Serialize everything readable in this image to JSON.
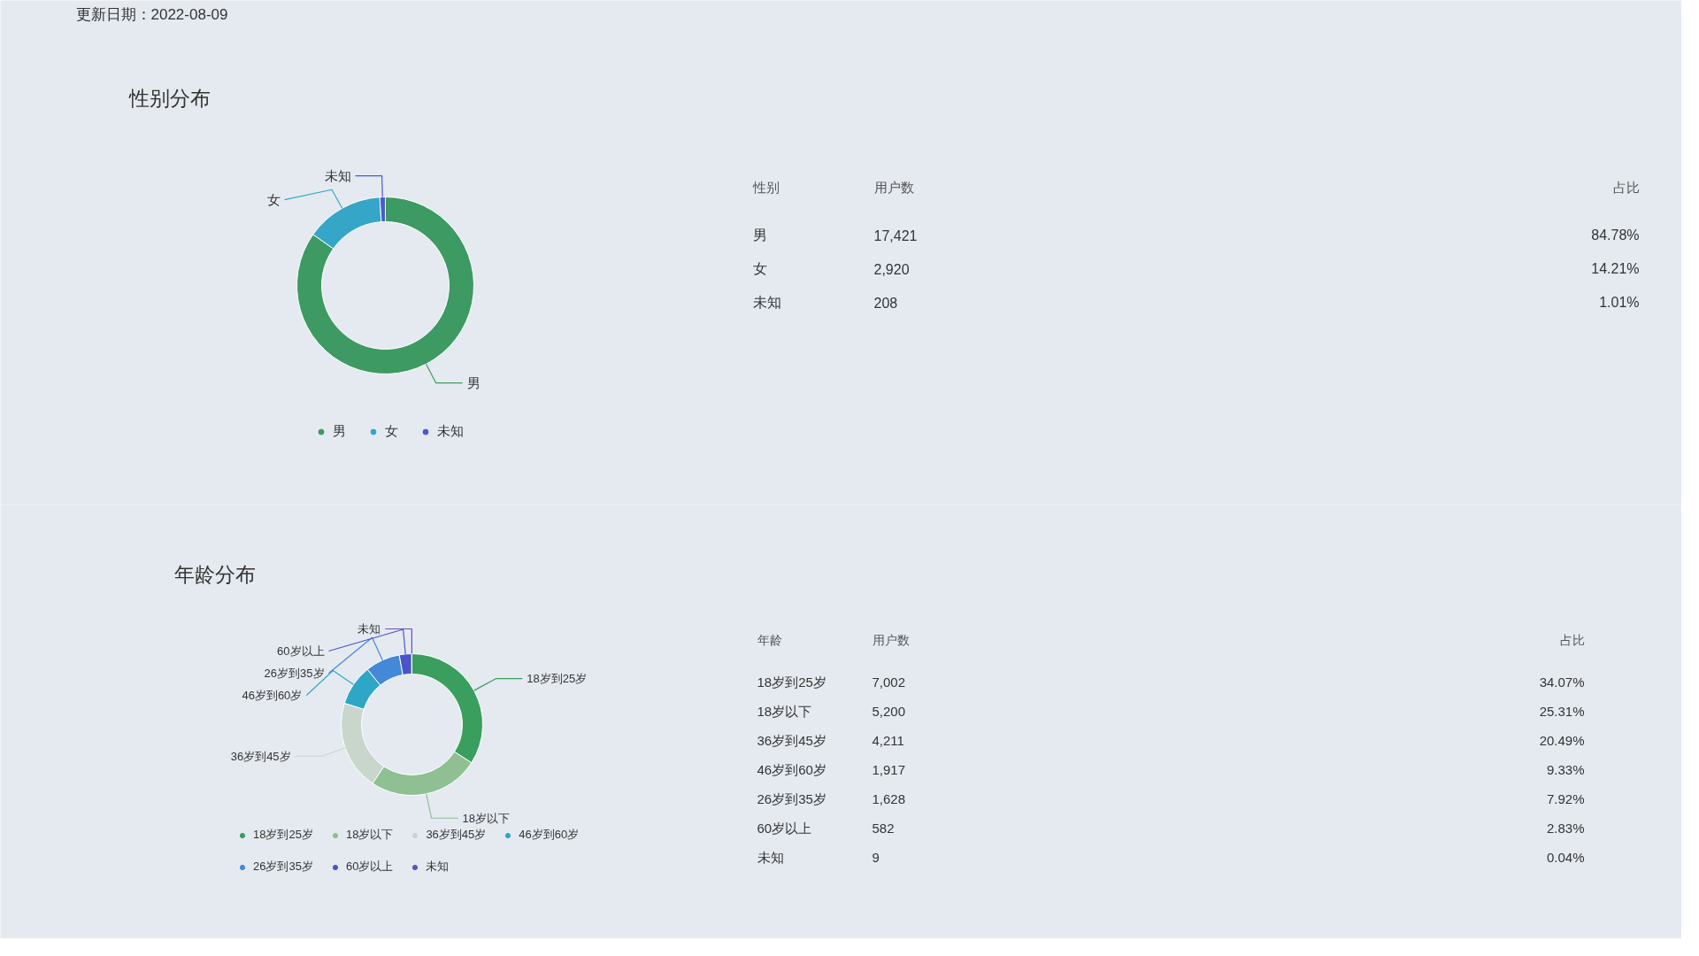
{
  "chart_data": [
    {
      "type": "donut",
      "title": "性别分布",
      "categories": [
        "男",
        "女",
        "未知"
      ],
      "values": [
        84.78,
        14.21,
        1.01
      ],
      "colors": [
        "#3d9a62",
        "#35a6c8",
        "#4a5bc9"
      ],
      "legend": "bottom",
      "annotations": [
        "更新日期：2022-08-09",
        "性别",
        "用户数",
        "占比",
        "17,421",
        "2,920",
        "208",
        "84.78%",
        "14.21%",
        "1.01%"
      ]
    },
    {
      "type": "donut",
      "title": "年龄分布",
      "categories": [
        "18岁到25岁",
        "18岁以下",
        "36岁到45岁",
        "46岁到60岁",
        "26岁到35岁",
        "60岁以上",
        "未知"
      ],
      "values": [
        34.07,
        25.31,
        20.49,
        9.33,
        7.92,
        2.83,
        0.04
      ],
      "colors": [
        "#3a9e5f",
        "#8fbf93",
        "#c8d6cc",
        "#2ea6c6",
        "#4488d8",
        "#4b55c8",
        "#6a4fb8"
      ],
      "legend": "bottom",
      "annotations": [
        "年龄",
        "用户数",
        "占比",
        "7,002",
        "5,200",
        "4,211",
        "1,917",
        "1,628",
        "582",
        "9",
        "34.07%",
        "25.31%",
        "20.49%",
        "9.33%",
        "7.92%",
        "2.83%",
        "0.04%"
      ]
    }
  ]
}
